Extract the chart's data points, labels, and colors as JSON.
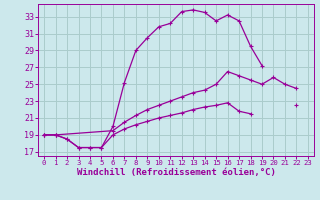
{
  "background_color": "#cce8ec",
  "grid_color": "#aacccc",
  "line_color": "#990099",
  "xlabel": "Windchill (Refroidissement éolien,°C)",
  "xlabel_fontsize": 6.5,
  "ytick_fontsize": 6,
  "xtick_fontsize": 5.2,
  "ylim": [
    16.5,
    34.5
  ],
  "xlim": [
    -0.5,
    23.5
  ],
  "yticks": [
    17,
    19,
    21,
    23,
    25,
    27,
    29,
    31,
    33
  ],
  "xticks": [
    0,
    1,
    2,
    3,
    4,
    5,
    6,
    7,
    8,
    9,
    10,
    11,
    12,
    13,
    14,
    15,
    16,
    17,
    18,
    19,
    20,
    21,
    22,
    23
  ],
  "curve1_x": [
    0,
    1,
    2,
    3,
    4,
    5,
    6,
    7,
    8,
    9,
    10,
    11,
    12,
    13,
    14,
    15,
    16,
    17,
    18,
    19,
    20,
    21
  ],
  "curve1_y": [
    19,
    19,
    18.5,
    17.5,
    17.5,
    17.5,
    20.0,
    25.2,
    29.0,
    30.5,
    31.8,
    32.2,
    33.6,
    33.8,
    33.5,
    32.5,
    33.2,
    32.5,
    29.5,
    27.2,
    null,
    null
  ],
  "curve2_x": [
    0,
    1,
    6,
    7,
    8,
    9,
    10,
    11,
    12,
    13,
    14,
    15,
    16,
    17,
    18,
    19,
    20,
    21,
    22
  ],
  "curve2_y": [
    19,
    19,
    19.5,
    20.5,
    21.3,
    22.0,
    22.5,
    23.0,
    23.5,
    24.0,
    24.3,
    25.0,
    26.5,
    26.0,
    25.5,
    25.0,
    25.8,
    25.0,
    24.5
  ],
  "curve3_x": [
    0,
    1,
    2,
    3,
    4,
    5,
    6,
    7,
    8,
    9,
    10,
    11,
    12,
    13,
    14,
    15,
    16,
    17,
    18,
    19,
    20,
    21,
    22
  ],
  "curve3_y": [
    19,
    19,
    18.5,
    17.5,
    17.5,
    17.5,
    19.0,
    19.7,
    20.2,
    20.6,
    21.0,
    21.3,
    21.6,
    22.0,
    22.3,
    22.5,
    22.8,
    21.8,
    21.5,
    null,
    null,
    null,
    22.5
  ]
}
